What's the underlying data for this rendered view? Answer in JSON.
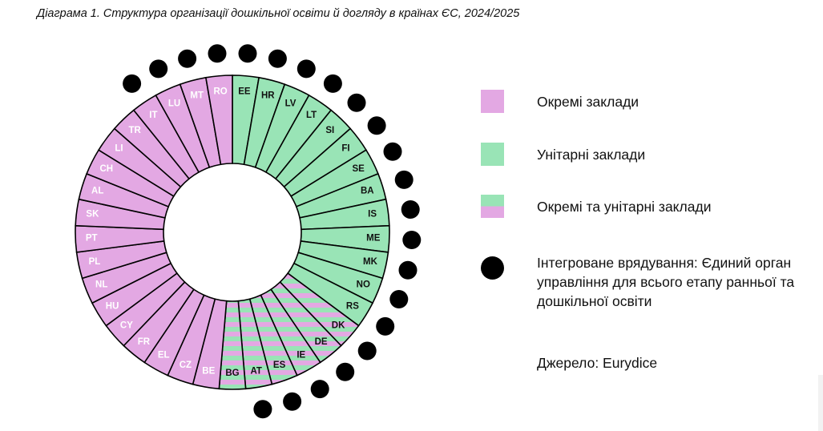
{
  "title": "Діаграма 1. Структура організації дошкільної освіти й догляду в країнах ЄС, 2024/2025",
  "colors": {
    "separate": "#e3a8e3",
    "unitary": "#99e4b6",
    "dot": "#000000",
    "stroke": "#000000"
  },
  "legend": {
    "separate": "Окремі заклади",
    "unitary": "Унітарні заклади",
    "mixed": "Окремі та унітарні заклади",
    "integrated": "Інтегроване врядування: Єдиний орган управління для всього етапу ранньої та дошкільної освіти"
  },
  "source": "Джерело: Eurydice",
  "chart_data": {
    "type": "pie",
    "variant": "donut",
    "categories": [
      "EE",
      "HR",
      "LV",
      "LT",
      "SI",
      "FI",
      "SE",
      "BA",
      "IS",
      "ME",
      "MK",
      "NO",
      "RS",
      "DK",
      "DE",
      "IE",
      "ES",
      "AT",
      "BG",
      "BE",
      "CZ",
      "EL",
      "FR",
      "CY",
      "HU",
      "NL",
      "PL",
      "PT",
      "SK",
      "AL",
      "CH",
      "LI",
      "TR",
      "IT",
      "LU",
      "MT",
      "RO"
    ],
    "slices": [
      {
        "label": "EE",
        "type": "unitary",
        "integrated": true
      },
      {
        "label": "HR",
        "type": "unitary",
        "integrated": true
      },
      {
        "label": "LV",
        "type": "unitary",
        "integrated": true
      },
      {
        "label": "LT",
        "type": "unitary",
        "integrated": true
      },
      {
        "label": "SI",
        "type": "unitary",
        "integrated": true
      },
      {
        "label": "FI",
        "type": "unitary",
        "integrated": true
      },
      {
        "label": "SE",
        "type": "unitary",
        "integrated": true
      },
      {
        "label": "BA",
        "type": "unitary",
        "integrated": true
      },
      {
        "label": "IS",
        "type": "unitary",
        "integrated": true
      },
      {
        "label": "ME",
        "type": "unitary",
        "integrated": true
      },
      {
        "label": "MK",
        "type": "unitary",
        "integrated": true
      },
      {
        "label": "NO",
        "type": "unitary",
        "integrated": true
      },
      {
        "label": "RS",
        "type": "unitary",
        "integrated": true
      },
      {
        "label": "DK",
        "type": "mixed",
        "integrated": true
      },
      {
        "label": "DE",
        "type": "mixed",
        "integrated": true
      },
      {
        "label": "IE",
        "type": "mixed",
        "integrated": true
      },
      {
        "label": "ES",
        "type": "mixed",
        "integrated": true
      },
      {
        "label": "AT",
        "type": "mixed",
        "integrated": true
      },
      {
        "label": "BG",
        "type": "mixed",
        "integrated": false
      },
      {
        "label": "BE",
        "type": "separate",
        "integrated": false
      },
      {
        "label": "CZ",
        "type": "separate",
        "integrated": false
      },
      {
        "label": "EL",
        "type": "separate",
        "integrated": false
      },
      {
        "label": "FR",
        "type": "separate",
        "integrated": false
      },
      {
        "label": "CY",
        "type": "separate",
        "integrated": false
      },
      {
        "label": "HU",
        "type": "separate",
        "integrated": false
      },
      {
        "label": "NL",
        "type": "separate",
        "integrated": false
      },
      {
        "label": "PL",
        "type": "separate",
        "integrated": false
      },
      {
        "label": "PT",
        "type": "separate",
        "integrated": false
      },
      {
        "label": "SK",
        "type": "separate",
        "integrated": false
      },
      {
        "label": "AL",
        "type": "separate",
        "integrated": false
      },
      {
        "label": "CH",
        "type": "separate",
        "integrated": false
      },
      {
        "label": "LI",
        "type": "separate",
        "integrated": false
      },
      {
        "label": "TR",
        "type": "separate",
        "integrated": false
      },
      {
        "label": "IT",
        "type": "separate",
        "integrated": true
      },
      {
        "label": "LU",
        "type": "separate",
        "integrated": true
      },
      {
        "label": "MT",
        "type": "separate",
        "integrated": true
      },
      {
        "label": "RO",
        "type": "separate",
        "integrated": true
      }
    ]
  }
}
